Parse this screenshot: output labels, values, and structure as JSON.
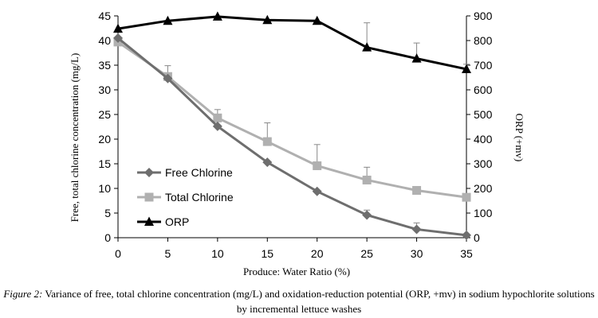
{
  "chart_data": {
    "type": "line",
    "title": "",
    "xlabel": "Produce: Water Ratio (%)",
    "ylabel": "Free, total chlorine concentration (mg/L)",
    "y2label": "ORP (+mv)",
    "x": [
      0,
      5,
      10,
      15,
      20,
      25,
      30,
      35
    ],
    "xlim": [
      0,
      35
    ],
    "ylim": [
      0,
      45
    ],
    "y2lim": [
      0,
      900
    ],
    "yticks": [
      0,
      5,
      10,
      15,
      20,
      25,
      30,
      35,
      40,
      45
    ],
    "y2ticks": [
      0,
      100,
      200,
      300,
      400,
      500,
      600,
      700,
      800,
      900
    ],
    "grid": false,
    "legend_position": "bottom-left",
    "series": [
      {
        "name": "Free Chlorine",
        "axis": "left",
        "marker": "diamond",
        "color": "#6e6e6e",
        "values": [
          40.5,
          32.3,
          22.6,
          15.3,
          9.4,
          4.6,
          1.7,
          0.5
        ],
        "error": [
          0,
          0,
          0,
          0,
          0,
          1.0,
          1.3,
          0
        ]
      },
      {
        "name": "Total Chlorine",
        "axis": "left",
        "marker": "square",
        "color": "#b0b0b0",
        "values": [
          39.7,
          32.7,
          24.3,
          19.5,
          14.6,
          11.7,
          9.6,
          8.2
        ],
        "error": [
          0,
          2.2,
          1.7,
          3.8,
          4.3,
          2.6,
          0,
          0
        ]
      },
      {
        "name": "ORP",
        "axis": "right",
        "marker": "triangle",
        "color": "#000000",
        "values": [
          848,
          880,
          897,
          883,
          880,
          772,
          727,
          684
        ],
        "error": [
          0,
          0,
          0,
          0,
          0,
          100,
          63,
          20
        ]
      }
    ]
  },
  "caption": {
    "figure_label": "Figure 2:",
    "text": "Variance of free, total chlorine concentration (mg/L) and oxidation-reduction potential (ORP, +mv) in sodium hypochlorite solutions by incremental lettuce washes"
  }
}
